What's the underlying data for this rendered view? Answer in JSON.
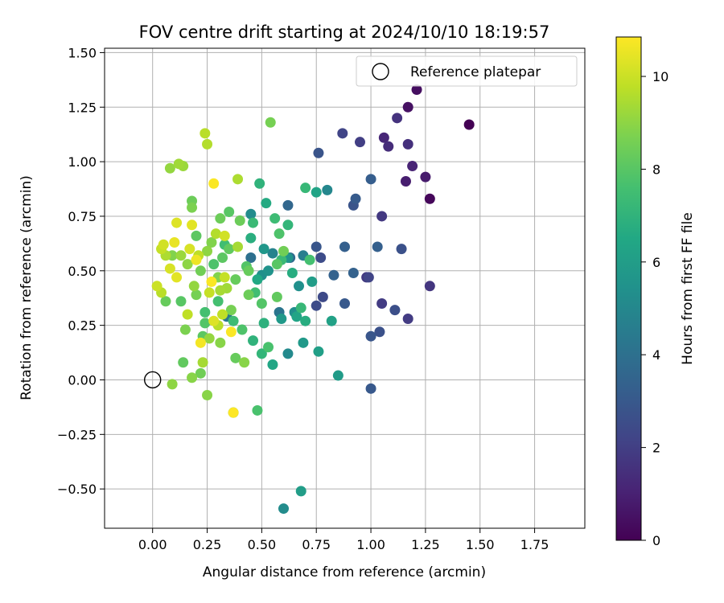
{
  "chart_data": {
    "type": "scatter",
    "title": "FOV centre drift starting at 2024/10/10 18:19:57",
    "xlabel": "Angular distance from reference (arcmin)",
    "ylabel": "Rotation from reference (arcmin)",
    "xlim": [
      -0.22,
      1.98
    ],
    "ylim": [
      -0.68,
      1.52
    ],
    "grid": true,
    "legend": {
      "position": "top-right",
      "entries": [
        "Reference platepar"
      ]
    },
    "x_ticks": [
      "0.00",
      "0.25",
      "0.50",
      "0.75",
      "1.00",
      "1.25",
      "1.50",
      "1.75"
    ],
    "y_ticks": [
      "1.50",
      "1.25",
      "1.00",
      "0.75",
      "0.50",
      "0.25",
      "0.00",
      "−0.25",
      "−0.50"
    ],
    "colorbar": {
      "label": "Hours from first FF file",
      "colormap": "viridis",
      "range": [
        0,
        10.85
      ],
      "ticks": [
        "0",
        "2",
        "4",
        "6",
        "8",
        "10"
      ]
    },
    "reference_point": {
      "name": "Reference platepar",
      "x": 0.0,
      "y": 0.0
    },
    "points": [
      {
        "x": 1.45,
        "y": 1.17,
        "h": 0.0
      },
      {
        "x": 1.27,
        "y": 0.83,
        "h": 0.2
      },
      {
        "x": 1.21,
        "y": 1.33,
        "h": 0.4
      },
      {
        "x": 1.17,
        "y": 1.25,
        "h": 0.5
      },
      {
        "x": 1.25,
        "y": 0.93,
        "h": 0.8
      },
      {
        "x": 1.16,
        "y": 0.91,
        "h": 0.9
      },
      {
        "x": 1.19,
        "y": 0.98,
        "h": 1.1
      },
      {
        "x": 1.06,
        "y": 1.11,
        "h": 1.2
      },
      {
        "x": 1.08,
        "y": 1.07,
        "h": 1.4
      },
      {
        "x": 1.17,
        "y": 1.08,
        "h": 1.5
      },
      {
        "x": 1.12,
        "y": 1.2,
        "h": 1.6
      },
      {
        "x": 1.27,
        "y": 0.43,
        "h": 1.7
      },
      {
        "x": 0.98,
        "y": 0.47,
        "h": 1.8
      },
      {
        "x": 1.05,
        "y": 0.75,
        "h": 1.8
      },
      {
        "x": 1.17,
        "y": 0.28,
        "h": 1.9
      },
      {
        "x": 1.05,
        "y": 0.35,
        "h": 1.9
      },
      {
        "x": 0.95,
        "y": 1.09,
        "h": 2.0
      },
      {
        "x": 0.87,
        "y": 1.13,
        "h": 2.2
      },
      {
        "x": 0.99,
        "y": 0.47,
        "h": 2.2
      },
      {
        "x": 0.78,
        "y": 0.38,
        "h": 2.4
      },
      {
        "x": 0.75,
        "y": 0.34,
        "h": 2.5
      },
      {
        "x": 0.77,
        "y": 0.56,
        "h": 2.5
      },
      {
        "x": 1.11,
        "y": 0.32,
        "h": 2.6
      },
      {
        "x": 1.14,
        "y": 0.6,
        "h": 2.7
      },
      {
        "x": 1.04,
        "y": 0.22,
        "h": 2.7
      },
      {
        "x": 0.76,
        "y": 1.04,
        "h": 2.8
      },
      {
        "x": 0.92,
        "y": 0.8,
        "h": 2.8
      },
      {
        "x": 0.75,
        "y": 0.61,
        "h": 2.9
      },
      {
        "x": 1.0,
        "y": 0.2,
        "h": 2.9
      },
      {
        "x": 1.0,
        "y": -0.04,
        "h": 3.0
      },
      {
        "x": 0.88,
        "y": 0.35,
        "h": 3.0
      },
      {
        "x": 0.93,
        "y": 0.83,
        "h": 3.1
      },
      {
        "x": 1.0,
        "y": 0.92,
        "h": 3.2
      },
      {
        "x": 1.03,
        "y": 0.61,
        "h": 3.3
      },
      {
        "x": 0.88,
        "y": 0.61,
        "h": 3.3
      },
      {
        "x": 0.92,
        "y": 0.49,
        "h": 3.4
      },
      {
        "x": 0.83,
        "y": 0.48,
        "h": 3.4
      },
      {
        "x": 0.62,
        "y": 0.8,
        "h": 3.6
      },
      {
        "x": 0.63,
        "y": 0.56,
        "h": 3.8
      },
      {
        "x": 0.45,
        "y": 0.56,
        "h": 4.0
      },
      {
        "x": 0.58,
        "y": 0.31,
        "h": 4.2
      },
      {
        "x": 0.34,
        "y": 0.29,
        "h": 4.3
      },
      {
        "x": 0.69,
        "y": 0.57,
        "h": 4.6
      },
      {
        "x": 0.55,
        "y": 0.58,
        "h": 4.8
      },
      {
        "x": 0.8,
        "y": 0.87,
        "h": 5.0
      },
      {
        "x": 0.62,
        "y": 0.12,
        "h": 5.1
      },
      {
        "x": 0.6,
        "y": -0.59,
        "h": 5.2
      },
      {
        "x": 0.45,
        "y": 0.76,
        "h": 5.2
      },
      {
        "x": 0.65,
        "y": 0.31,
        "h": 5.3
      },
      {
        "x": 0.5,
        "y": 0.48,
        "h": 5.4
      },
      {
        "x": 0.53,
        "y": 0.5,
        "h": 5.5
      },
      {
        "x": 0.62,
        "y": 0.56,
        "h": 5.6
      },
      {
        "x": 0.51,
        "y": 0.6,
        "h": 5.7
      },
      {
        "x": 0.59,
        "y": 0.28,
        "h": 5.8
      },
      {
        "x": 0.69,
        "y": 0.17,
        "h": 5.8
      },
      {
        "x": 0.85,
        "y": 0.02,
        "h": 5.9
      },
      {
        "x": 0.68,
        "y": -0.51,
        "h": 6.0
      },
      {
        "x": 0.76,
        "y": 0.13,
        "h": 6.1
      },
      {
        "x": 0.82,
        "y": 0.27,
        "h": 6.2
      },
      {
        "x": 0.75,
        "y": 0.86,
        "h": 6.3
      },
      {
        "x": 0.55,
        "y": 0.07,
        "h": 6.4
      },
      {
        "x": 0.48,
        "y": 0.46,
        "h": 6.5
      },
      {
        "x": 0.52,
        "y": 0.81,
        "h": 6.6
      },
      {
        "x": 0.7,
        "y": 0.27,
        "h": 6.7
      },
      {
        "x": 0.45,
        "y": 0.65,
        "h": 6.8
      },
      {
        "x": 0.37,
        "y": -0.15,
        "h": 6.9
      },
      {
        "x": 0.49,
        "y": 0.9,
        "h": 7.0
      },
      {
        "x": 0.62,
        "y": 0.71,
        "h": 7.1
      },
      {
        "x": 0.68,
        "y": 0.33,
        "h": 7.2
      },
      {
        "x": 0.59,
        "y": 0.55,
        "h": 7.3
      },
      {
        "x": 0.46,
        "y": 0.72,
        "h": 7.3
      },
      {
        "x": 0.37,
        "y": 0.27,
        "h": 7.4
      },
      {
        "x": 0.33,
        "y": 0.62,
        "h": 7.5
      },
      {
        "x": 0.24,
        "y": 0.31,
        "h": 7.6
      },
      {
        "x": 0.3,
        "y": 0.36,
        "h": 7.6
      },
      {
        "x": 0.48,
        "y": -0.14,
        "h": 7.7
      },
      {
        "x": 0.41,
        "y": 0.23,
        "h": 7.8
      },
      {
        "x": 0.24,
        "y": 0.26,
        "h": 7.9
      },
      {
        "x": 0.5,
        "y": 0.35,
        "h": 7.9
      },
      {
        "x": 0.57,
        "y": 0.53,
        "h": 8.0
      },
      {
        "x": 0.35,
        "y": 0.77,
        "h": 8.0
      },
      {
        "x": 0.2,
        "y": 0.66,
        "h": 8.1
      },
      {
        "x": 0.35,
        "y": 0.6,
        "h": 8.2
      },
      {
        "x": 0.44,
        "y": 0.5,
        "h": 8.3
      },
      {
        "x": 0.31,
        "y": 0.74,
        "h": 8.4
      },
      {
        "x": 0.18,
        "y": 0.82,
        "h": 8.4
      },
      {
        "x": 0.22,
        "y": 0.03,
        "h": 8.5
      },
      {
        "x": 0.54,
        "y": 1.18,
        "h": 8.6
      },
      {
        "x": 0.18,
        "y": 0.79,
        "h": 8.7
      },
      {
        "x": 0.3,
        "y": 0.47,
        "h": 8.8
      },
      {
        "x": 0.18,
        "y": 0.01,
        "h": 8.9
      },
      {
        "x": 0.25,
        "y": -0.07,
        "h": 8.9
      },
      {
        "x": 0.09,
        "y": -0.02,
        "h": 9.0
      },
      {
        "x": 0.08,
        "y": 0.97,
        "h": 9.1
      },
      {
        "x": 0.14,
        "y": 0.98,
        "h": 9.2
      },
      {
        "x": 0.12,
        "y": 0.99,
        "h": 9.3
      },
      {
        "x": 0.23,
        "y": 0.08,
        "h": 9.4
      },
      {
        "x": 0.39,
        "y": 0.92,
        "h": 9.5
      },
      {
        "x": 0.25,
        "y": 1.08,
        "h": 9.6
      },
      {
        "x": 0.24,
        "y": 1.13,
        "h": 9.7
      },
      {
        "x": 0.16,
        "y": 0.3,
        "h": 9.8
      },
      {
        "x": 0.04,
        "y": 0.6,
        "h": 9.9
      },
      {
        "x": 0.02,
        "y": 0.43,
        "h": 10.0
      },
      {
        "x": 0.05,
        "y": 0.62,
        "h": 10.1
      },
      {
        "x": 0.08,
        "y": 0.51,
        "h": 10.2
      },
      {
        "x": 0.11,
        "y": 0.72,
        "h": 10.3
      },
      {
        "x": 0.18,
        "y": 0.71,
        "h": 10.4
      },
      {
        "x": 0.1,
        "y": 0.63,
        "h": 10.5
      },
      {
        "x": 0.2,
        "y": 0.55,
        "h": 10.6
      },
      {
        "x": 0.22,
        "y": 0.17,
        "h": 10.7
      },
      {
        "x": 0.28,
        "y": 0.9,
        "h": 10.8
      },
      {
        "x": 0.27,
        "y": 0.45,
        "h": 10.8
      },
      {
        "x": 0.37,
        "y": -0.15,
        "h": 10.85
      },
      {
        "x": 0.36,
        "y": 0.22,
        "h": 10.8
      },
      {
        "x": 0.06,
        "y": 0.36,
        "h": 8.3
      },
      {
        "x": 0.13,
        "y": 0.36,
        "h": 8.0
      },
      {
        "x": 0.15,
        "y": 0.23,
        "h": 8.7
      },
      {
        "x": 0.14,
        "y": 0.08,
        "h": 8.2
      },
      {
        "x": 0.19,
        "y": 0.43,
        "h": 9.1
      },
      {
        "x": 0.22,
        "y": 0.5,
        "h": 8.5
      },
      {
        "x": 0.25,
        "y": 0.59,
        "h": 9.0
      },
      {
        "x": 0.27,
        "y": 0.63,
        "h": 8.8
      },
      {
        "x": 0.29,
        "y": 0.67,
        "h": 9.6
      },
      {
        "x": 0.32,
        "y": 0.56,
        "h": 8.1
      },
      {
        "x": 0.34,
        "y": 0.42,
        "h": 9.3
      },
      {
        "x": 0.36,
        "y": 0.32,
        "h": 8.6
      },
      {
        "x": 0.39,
        "y": 0.61,
        "h": 9.4
      },
      {
        "x": 0.4,
        "y": 0.73,
        "h": 8.4
      },
      {
        "x": 0.42,
        "y": 0.08,
        "h": 8.9
      },
      {
        "x": 0.43,
        "y": 0.52,
        "h": 7.9
      },
      {
        "x": 0.44,
        "y": 0.39,
        "h": 8.4
      },
      {
        "x": 0.46,
        "y": 0.18,
        "h": 7.0
      },
      {
        "x": 0.47,
        "y": 0.4,
        "h": 7.5
      },
      {
        "x": 0.5,
        "y": 0.12,
        "h": 7.1
      },
      {
        "x": 0.51,
        "y": 0.26,
        "h": 6.9
      },
      {
        "x": 0.53,
        "y": 0.15,
        "h": 7.7
      },
      {
        "x": 0.56,
        "y": 0.74,
        "h": 7.4
      },
      {
        "x": 0.57,
        "y": 0.38,
        "h": 8.2
      },
      {
        "x": 0.58,
        "y": 0.67,
        "h": 7.8
      },
      {
        "x": 0.6,
        "y": 0.59,
        "h": 8.5
      },
      {
        "x": 0.64,
        "y": 0.49,
        "h": 6.7
      },
      {
        "x": 0.66,
        "y": 0.29,
        "h": 6.3
      },
      {
        "x": 0.67,
        "y": 0.43,
        "h": 5.4
      },
      {
        "x": 0.7,
        "y": 0.88,
        "h": 7.2
      },
      {
        "x": 0.72,
        "y": 0.55,
        "h": 7.6
      },
      {
        "x": 0.73,
        "y": 0.45,
        "h": 6.0
      },
      {
        "x": 0.23,
        "y": 0.2,
        "h": 8.1
      },
      {
        "x": 0.21,
        "y": 0.57,
        "h": 9.8
      },
      {
        "x": 0.3,
        "y": 0.25,
        "h": 9.7
      },
      {
        "x": 0.31,
        "y": 0.17,
        "h": 8.9
      },
      {
        "x": 0.33,
        "y": 0.47,
        "h": 9.9
      },
      {
        "x": 0.17,
        "y": 0.6,
        "h": 10.2
      },
      {
        "x": 0.06,
        "y": 0.57,
        "h": 9.5
      },
      {
        "x": 0.04,
        "y": 0.4,
        "h": 9.7
      },
      {
        "x": 0.13,
        "y": 0.57,
        "h": 9.2
      },
      {
        "x": 0.09,
        "y": 0.57,
        "h": 8.8
      },
      {
        "x": 0.11,
        "y": 0.47,
        "h": 10.4
      },
      {
        "x": 0.16,
        "y": 0.53,
        "h": 9.0
      },
      {
        "x": 0.2,
        "y": 0.39,
        "h": 8.6
      },
      {
        "x": 0.28,
        "y": 0.53,
        "h": 7.8
      },
      {
        "x": 0.31,
        "y": 0.41,
        "h": 9.4
      },
      {
        "x": 0.33,
        "y": 0.66,
        "h": 10.1
      },
      {
        "x": 0.26,
        "y": 0.4,
        "h": 9.9
      },
      {
        "x": 0.28,
        "y": 0.27,
        "h": 10.3
      },
      {
        "x": 0.38,
        "y": 0.46,
        "h": 8.3
      },
      {
        "x": 0.26,
        "y": 0.19,
        "h": 9.1
      },
      {
        "x": 0.32,
        "y": 0.3,
        "h": 9.8
      },
      {
        "x": 0.38,
        "y": 0.1,
        "h": 8.3
      }
    ]
  }
}
